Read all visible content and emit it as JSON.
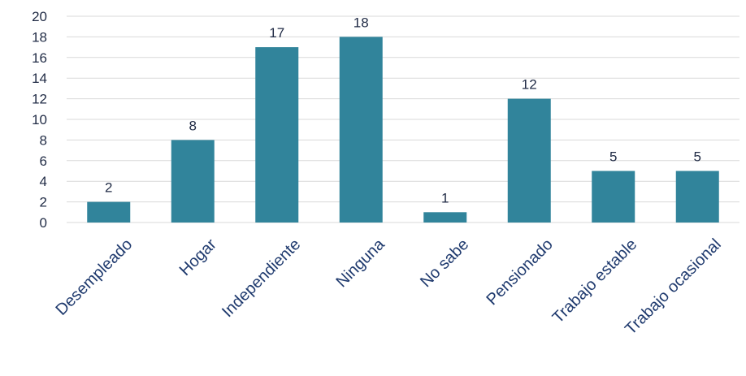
{
  "chart_data": {
    "type": "bar",
    "categories": [
      "Desempleado",
      "Hogar",
      "Independiente",
      "Ninguna",
      "No sabe",
      "Pensionado",
      "Trabajo estable",
      "Trabajo ocasional"
    ],
    "values": [
      2,
      8,
      17,
      18,
      1,
      12,
      5,
      5
    ],
    "ylim": [
      0,
      20
    ],
    "yticks": [
      "0",
      "2",
      "4",
      "6",
      "8",
      "10",
      "12",
      "14",
      "16",
      "18",
      "20"
    ],
    "grid": true,
    "data_labels": true,
    "bar_color": "#31849b",
    "grid_color": "#d9d9d9"
  }
}
